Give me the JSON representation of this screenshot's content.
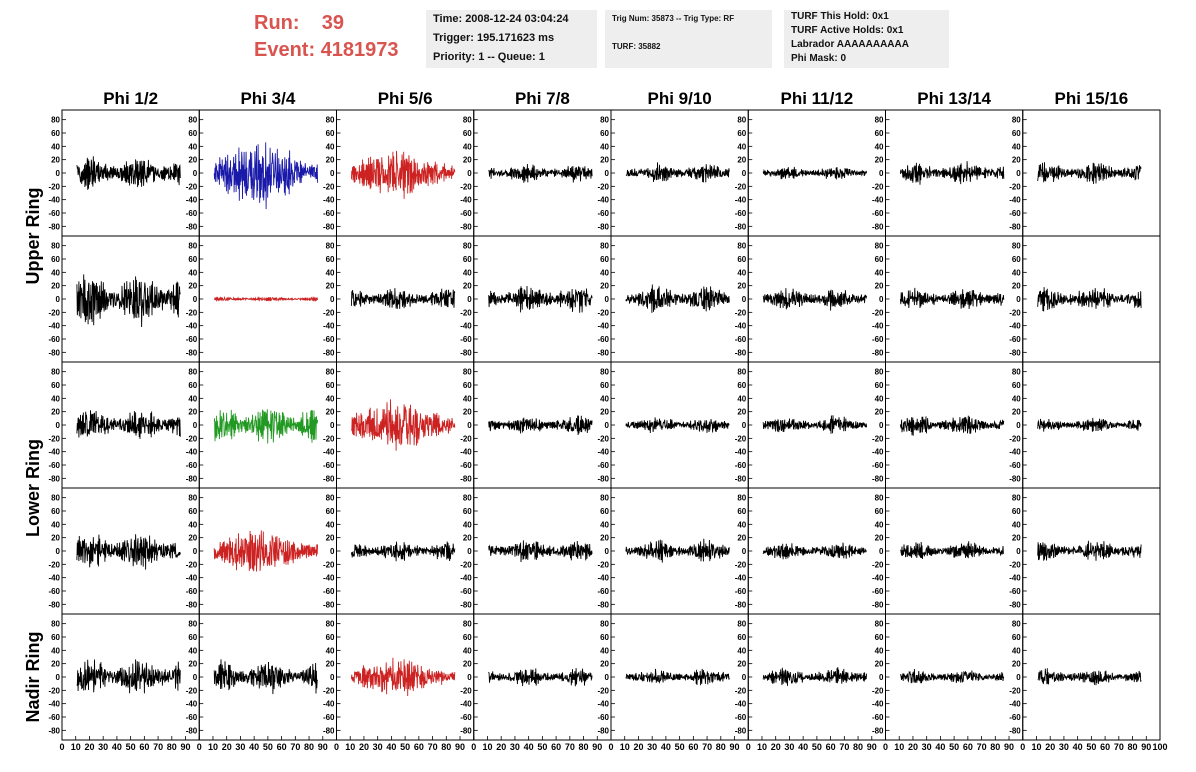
{
  "header": {
    "run_label": "Run:",
    "run_value": "39",
    "event_label": "Event:",
    "event_value": "4181973",
    "box1": [
      "Time: 2008-12-24 03:04:24",
      "Trigger: 195.171623 ms",
      "Priority: 1 -- Queue: 1"
    ],
    "box2": [
      "Trig Num: 35873 -- Trig Type: RF",
      "TURF: 35882"
    ],
    "box3": [
      "TURF This Hold: 0x1",
      "TURF Active Holds: 0x1",
      "Labrador AAAAAAAAAA",
      "Phi Mask: 0"
    ]
  },
  "colors": {
    "run_text": "#d9534f",
    "black": "#000000",
    "blue": "#1a1aaa",
    "red": "#cc2222",
    "green": "#229922",
    "box_bg": "#eeeeee"
  },
  "chart_data": {
    "type": "line",
    "columns": [
      "Phi 1/2",
      "Phi 3/4",
      "Phi 5/6",
      "Phi 7/8",
      "Phi 9/10",
      "Phi 11/12",
      "Phi 13/14",
      "Phi 15/16"
    ],
    "row_groups": [
      "Upper Ring",
      "Lower Ring",
      "Nadir Ring"
    ],
    "xlim": [
      0,
      100
    ],
    "ylim": [
      -90,
      90
    ],
    "y_ticks": [
      -80,
      -60,
      -40,
      -20,
      0,
      20,
      40,
      60,
      80
    ],
    "x_ticks": [
      0,
      10,
      20,
      30,
      40,
      50,
      60,
      70,
      80,
      90
    ],
    "x_tick_label_last": "100",
    "panels": [
      [
        {
          "color": "black",
          "amp": 22,
          "env": "flat"
        },
        {
          "color": "blue",
          "amp": 35,
          "env": "burst"
        },
        {
          "color": "red",
          "amp": 25,
          "env": "burst"
        },
        {
          "color": "black",
          "amp": 12,
          "env": "flat"
        },
        {
          "color": "black",
          "amp": 13,
          "env": "flat"
        },
        {
          "color": "black",
          "amp": 9,
          "env": "flat"
        },
        {
          "color": "black",
          "amp": 14,
          "env": "flat"
        },
        {
          "color": "black",
          "amp": 14,
          "env": "flat"
        }
      ],
      [
        {
          "color": "black",
          "amp": 35,
          "env": "flat"
        },
        {
          "color": "red",
          "amp": 3,
          "env": "flat"
        },
        {
          "color": "black",
          "amp": 15,
          "env": "flat"
        },
        {
          "color": "black",
          "amp": 18,
          "env": "flat"
        },
        {
          "color": "black",
          "amp": 18,
          "env": "flat"
        },
        {
          "color": "black",
          "amp": 15,
          "env": "flat"
        },
        {
          "color": "black",
          "amp": 14,
          "env": "flat"
        },
        {
          "color": "black",
          "amp": 16,
          "env": "flat"
        }
      ],
      [
        {
          "color": "black",
          "amp": 20,
          "env": "flat"
        },
        {
          "color": "green",
          "amp": 25,
          "env": "flat"
        },
        {
          "color": "red",
          "amp": 27,
          "env": "burst"
        },
        {
          "color": "black",
          "amp": 12,
          "env": "flat"
        },
        {
          "color": "black",
          "amp": 11,
          "env": "flat"
        },
        {
          "color": "black",
          "amp": 11,
          "env": "flat"
        },
        {
          "color": "black",
          "amp": 13,
          "env": "flat"
        },
        {
          "color": "black",
          "amp": 9,
          "env": "flat"
        }
      ],
      [
        {
          "color": "black",
          "amp": 25,
          "env": "flat"
        },
        {
          "color": "red",
          "amp": 26,
          "env": "burst"
        },
        {
          "color": "black",
          "amp": 13,
          "env": "flat"
        },
        {
          "color": "black",
          "amp": 14,
          "env": "flat"
        },
        {
          "color": "black",
          "amp": 14,
          "env": "flat"
        },
        {
          "color": "black",
          "amp": 12,
          "env": "flat"
        },
        {
          "color": "black",
          "amp": 12,
          "env": "flat"
        },
        {
          "color": "black",
          "amp": 14,
          "env": "flat"
        }
      ],
      [
        {
          "color": "black",
          "amp": 25,
          "env": "flat"
        },
        {
          "color": "black",
          "amp": 21,
          "env": "flat"
        },
        {
          "color": "red",
          "amp": 20,
          "env": "burst"
        },
        {
          "color": "black",
          "amp": 12,
          "env": "flat"
        },
        {
          "color": "black",
          "amp": 11,
          "env": "flat"
        },
        {
          "color": "black",
          "amp": 12,
          "env": "flat"
        },
        {
          "color": "black",
          "amp": 10,
          "env": "flat"
        },
        {
          "color": "black",
          "amp": 11,
          "env": "flat"
        }
      ]
    ]
  }
}
